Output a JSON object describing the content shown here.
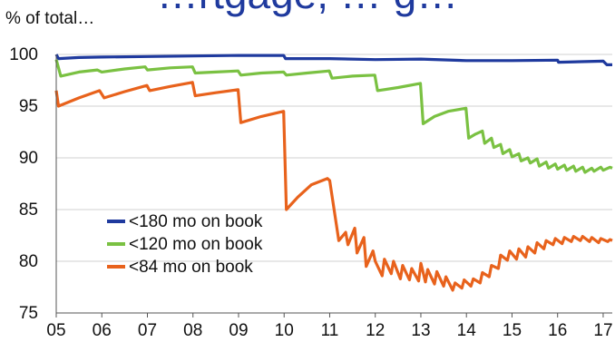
{
  "title": "…rtgage, … g…",
  "unit_label": "% of total…",
  "chart_data": {
    "type": "line",
    "ylim": [
      75,
      100
    ],
    "xlim": [
      2005,
      2017.2
    ],
    "yticks": [
      75,
      80,
      85,
      90,
      95,
      100
    ],
    "xticks": [
      {
        "value": 2005,
        "label": "05"
      },
      {
        "value": 2006,
        "label": "06"
      },
      {
        "value": 2007,
        "label": "07"
      },
      {
        "value": 2008,
        "label": "08"
      },
      {
        "value": 2009,
        "label": "09"
      },
      {
        "value": 2010,
        "label": "10"
      },
      {
        "value": 2011,
        "label": "11"
      },
      {
        "value": 2012,
        "label": "12"
      },
      {
        "value": 2013,
        "label": "13"
      },
      {
        "value": 2014,
        "label": "14"
      },
      {
        "value": 2015,
        "label": "15"
      },
      {
        "value": 2016,
        "label": "16"
      },
      {
        "value": 2017,
        "label": "17"
      }
    ],
    "grid": "horizontal",
    "legend_position": "bottom-left",
    "series": [
      {
        "name": "<180 mo on book",
        "color": "#1f3a9e",
        "x": [
          2005,
          2005.05,
          2005.5,
          2006,
          2007,
          2008,
          2009,
          2009.99,
          2010.03,
          2011,
          2012,
          2013,
          2014,
          2015,
          2016,
          2016.02,
          2017,
          2017.08,
          2017.2
        ],
        "y": [
          100,
          99.6,
          99.7,
          99.75,
          99.8,
          99.85,
          99.9,
          99.9,
          99.6,
          99.6,
          99.5,
          99.55,
          99.4,
          99.4,
          99.45,
          99.25,
          99.35,
          99.0,
          99.0
        ]
      },
      {
        "name": "<120 mo on book",
        "color": "#7ac142",
        "x": [
          2005,
          2005.1,
          2005.5,
          2005.9,
          2006.0,
          2006.5,
          2006.95,
          2007.0,
          2007.5,
          2007.99,
          2008.05,
          2008.5,
          2008.99,
          2009.05,
          2009.5,
          2009.99,
          2010.05,
          2010.5,
          2010.99,
          2011.05,
          2011.5,
          2011.99,
          2012.05,
          2012.5,
          2012.99,
          2013.05,
          2013.3,
          2013.6,
          2013.99,
          2014.05,
          2014.2,
          2014.35,
          2014.4,
          2014.55,
          2014.6,
          2014.75,
          2014.8,
          2014.95,
          2015.0,
          2015.15,
          2015.2,
          2015.35,
          2015.4,
          2015.55,
          2015.6,
          2015.75,
          2015.8,
          2015.95,
          2016.0,
          2016.15,
          2016.2,
          2016.35,
          2016.4,
          2016.55,
          2016.6,
          2016.75,
          2016.8,
          2016.95,
          2017.0,
          2017.15,
          2017.2
        ],
        "y": [
          99.5,
          97.9,
          98.3,
          98.5,
          98.3,
          98.6,
          98.8,
          98.5,
          98.7,
          98.8,
          98.2,
          98.3,
          98.4,
          98.0,
          98.2,
          98.3,
          98.0,
          98.2,
          98.4,
          97.7,
          97.9,
          98.0,
          96.5,
          96.8,
          97.2,
          93.3,
          94.0,
          94.5,
          94.8,
          91.9,
          92.3,
          92.6,
          91.4,
          91.9,
          91.0,
          91.3,
          90.4,
          90.8,
          90.1,
          90.4,
          89.7,
          90.0,
          89.5,
          89.9,
          89.2,
          89.6,
          89.0,
          89.4,
          88.9,
          89.3,
          88.8,
          89.2,
          88.7,
          89.1,
          88.6,
          89.0,
          88.7,
          89.1,
          88.8,
          89.1,
          89.0
        ]
      },
      {
        "name": "<84 mo on book",
        "color": "#e8621c",
        "x": [
          2005,
          2005.05,
          2005.5,
          2005.95,
          2006.05,
          2006.5,
          2006.99,
          2007.05,
          2007.5,
          2007.99,
          2008.05,
          2008.5,
          2008.99,
          2009.05,
          2009.5,
          2009.99,
          2010.05,
          2010.3,
          2010.6,
          2010.95,
          2011.0,
          2011.2,
          2011.35,
          2011.4,
          2011.55,
          2011.6,
          2011.75,
          2011.8,
          2011.95,
          2012.0,
          2012.15,
          2012.2,
          2012.35,
          2012.4,
          2012.55,
          2012.6,
          2012.75,
          2012.8,
          2012.95,
          2013.0,
          2013.1,
          2013.15,
          2013.3,
          2013.35,
          2013.5,
          2013.55,
          2013.7,
          2013.75,
          2013.9,
          2013.95,
          2014.1,
          2014.15,
          2014.3,
          2014.35,
          2014.5,
          2014.55,
          2014.7,
          2014.75,
          2014.9,
          2014.95,
          2015.1,
          2015.15,
          2015.3,
          2015.35,
          2015.5,
          2015.55,
          2015.7,
          2015.75,
          2015.9,
          2015.95,
          2016.1,
          2016.15,
          2016.3,
          2016.35,
          2016.5,
          2016.55,
          2016.7,
          2016.75,
          2016.9,
          2016.95,
          2017.1,
          2017.15,
          2017.2
        ],
        "y": [
          96.5,
          95.0,
          95.8,
          96.5,
          95.8,
          96.4,
          97.0,
          96.5,
          96.9,
          97.3,
          96.0,
          96.3,
          96.6,
          93.4,
          94.0,
          94.5,
          85.0,
          86.2,
          87.4,
          88.0,
          87.8,
          82.0,
          82.8,
          81.6,
          83.2,
          80.8,
          82.3,
          79.5,
          81.0,
          80.0,
          78.6,
          80.2,
          78.8,
          80.0,
          78.3,
          79.6,
          78.2,
          79.3,
          78.1,
          79.8,
          78.0,
          79.2,
          77.8,
          79.0,
          77.6,
          78.5,
          77.2,
          77.9,
          77.4,
          78.2,
          77.6,
          78.3,
          77.9,
          78.9,
          78.5,
          79.6,
          79.3,
          80.6,
          80.1,
          81.0,
          80.2,
          81.2,
          80.4,
          81.4,
          80.8,
          81.8,
          81.2,
          82.0,
          81.6,
          82.2,
          81.7,
          82.3,
          81.9,
          82.4,
          82.0,
          82.4,
          81.9,
          82.3,
          81.8,
          82.2,
          81.9,
          82.1,
          82.0
        ]
      }
    ]
  }
}
